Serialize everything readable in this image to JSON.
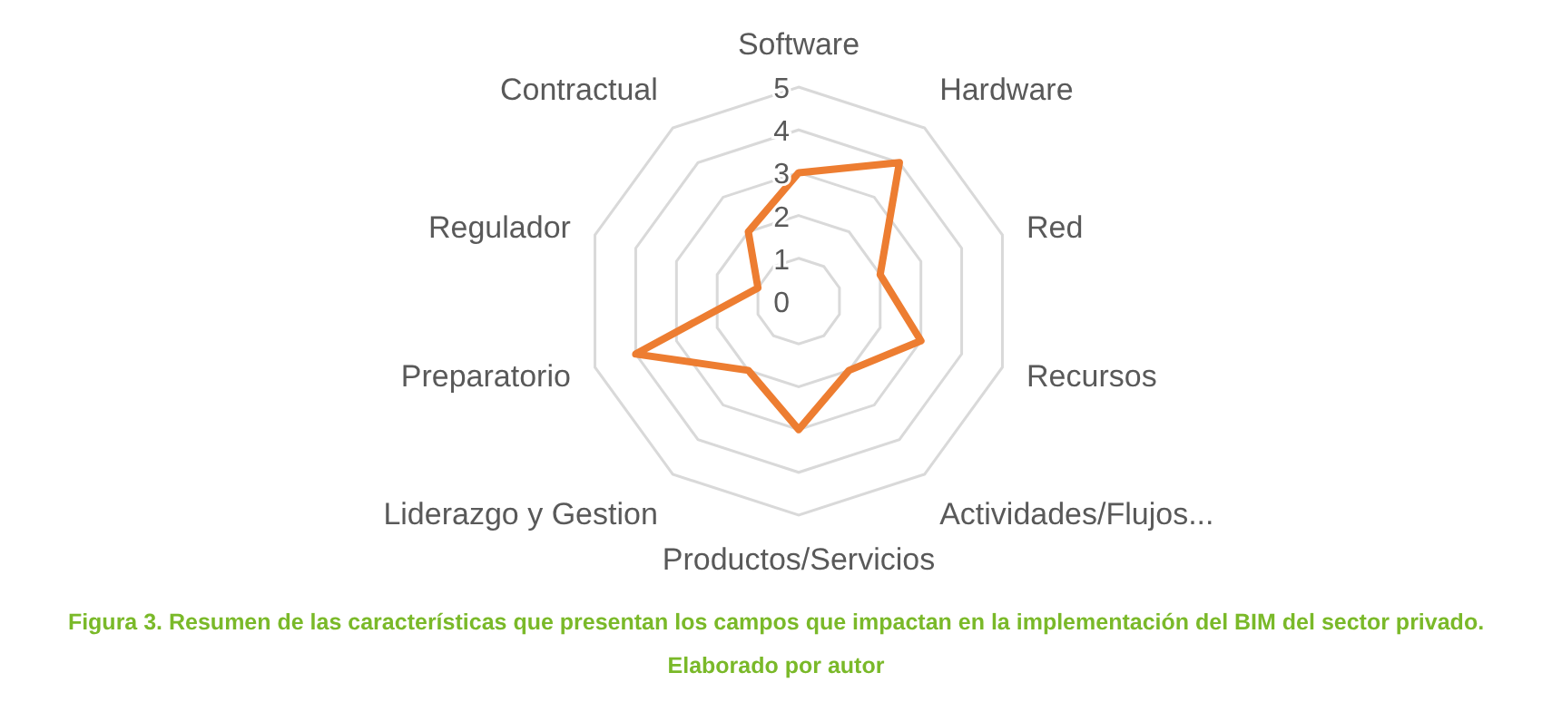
{
  "chart_data": {
    "type": "radar",
    "categories": [
      "Software",
      "Hardware",
      "Red",
      "Recursos",
      "Actividades/Flujos...",
      "Productos/Servicios",
      "Liderazgo y Gestion",
      "Preparatorio",
      "Regulador",
      "Contractual"
    ],
    "series": [
      {
        "color": "#ed7d31",
        "values": [
          3,
          4,
          2,
          3,
          2,
          3,
          2,
          4,
          1,
          2
        ]
      }
    ],
    "ylim": [
      0,
      5
    ],
    "yticks": [
      0,
      1,
      2,
      3,
      4,
      5
    ],
    "grid": true,
    "annotations": [
      "Figura 3. Resumen de las características que presentan los campos que impactan en la implementación del BIM del sector privado.",
      "Elaborado por autor"
    ]
  }
}
